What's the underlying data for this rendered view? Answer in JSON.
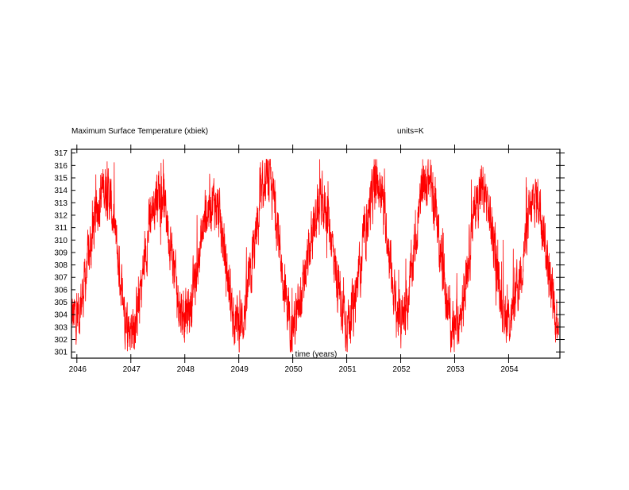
{
  "chart_data": {
    "type": "line",
    "title": "Maximum Surface Temperature (xbiek)",
    "units_label": "units=K",
    "xlabel": "time (years)",
    "ylabel": "",
    "xlim": [
      2045.9,
      2054.95
    ],
    "ylim": [
      300.5,
      317.3
    ],
    "x_ticks": [
      "2046",
      "2047",
      "2048",
      "2049",
      "2050",
      "2051",
      "2052",
      "2053",
      "2054"
    ],
    "y_ticks": [
      "301",
      "302",
      "303",
      "304",
      "305",
      "306",
      "307",
      "308",
      "309",
      "310",
      "311",
      "312",
      "313",
      "314",
      "315",
      "316",
      "317"
    ],
    "grid": false,
    "series": [
      {
        "color": "#ff0000",
        "peaks": [
          {
            "x": 2046.52,
            "y": 314.2
          },
          {
            "x": 2047.52,
            "y": 314.0
          },
          {
            "x": 2048.52,
            "y": 313.2
          },
          {
            "x": 2049.55,
            "y": 314.5
          },
          {
            "x": 2050.55,
            "y": 313.0
          },
          {
            "x": 2051.58,
            "y": 314.4
          },
          {
            "x": 2052.5,
            "y": 314.9
          },
          {
            "x": 2053.5,
            "y": 314.0
          },
          {
            "x": 2054.52,
            "y": 313.3
          }
        ],
        "troughs": [
          {
            "x": 2045.95,
            "y": 303.8
          },
          {
            "x": 2047.0,
            "y": 303.0
          },
          {
            "x": 2048.0,
            "y": 303.9
          },
          {
            "x": 2049.0,
            "y": 303.2
          },
          {
            "x": 2050.0,
            "y": 303.3
          },
          {
            "x": 2051.0,
            "y": 303.6
          },
          {
            "x": 2052.0,
            "y": 303.5
          },
          {
            "x": 2053.0,
            "y": 302.8
          },
          {
            "x": 2054.0,
            "y": 303.7
          },
          {
            "x": 2054.9,
            "y": 304.0
          }
        ]
      }
    ]
  }
}
